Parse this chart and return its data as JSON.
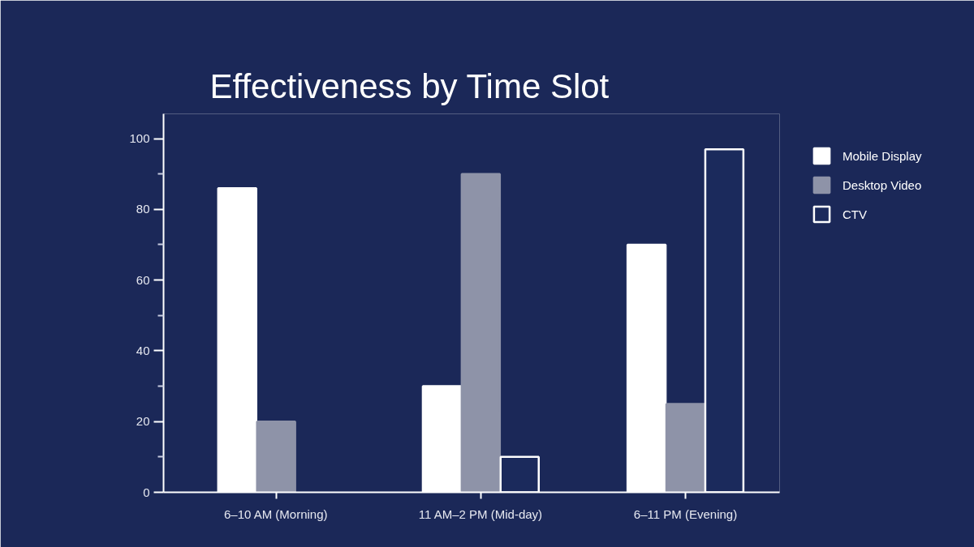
{
  "chart_data": {
    "type": "bar",
    "title": "Effectiveness by Time Slot",
    "categories": [
      "6–10 AM (Morning)",
      "11 AM–2 PM (Mid-day)",
      "6–11 PM (Evening)"
    ],
    "series": [
      {
        "name": "Mobile Display",
        "color": "#ffffff",
        "values": [
          86,
          30,
          70
        ]
      },
      {
        "name": "Desktop Video",
        "color": "#8e93a8",
        "values": [
          20,
          90,
          25
        ]
      },
      {
        "name": "CTV",
        "color": "#1b2a5c",
        "values": [
          null,
          10,
          97
        ]
      }
    ],
    "ylim": [
      0,
      107
    ],
    "yticks": [
      0,
      20,
      40,
      60,
      80,
      100
    ],
    "grid": false,
    "legend": "top right"
  }
}
